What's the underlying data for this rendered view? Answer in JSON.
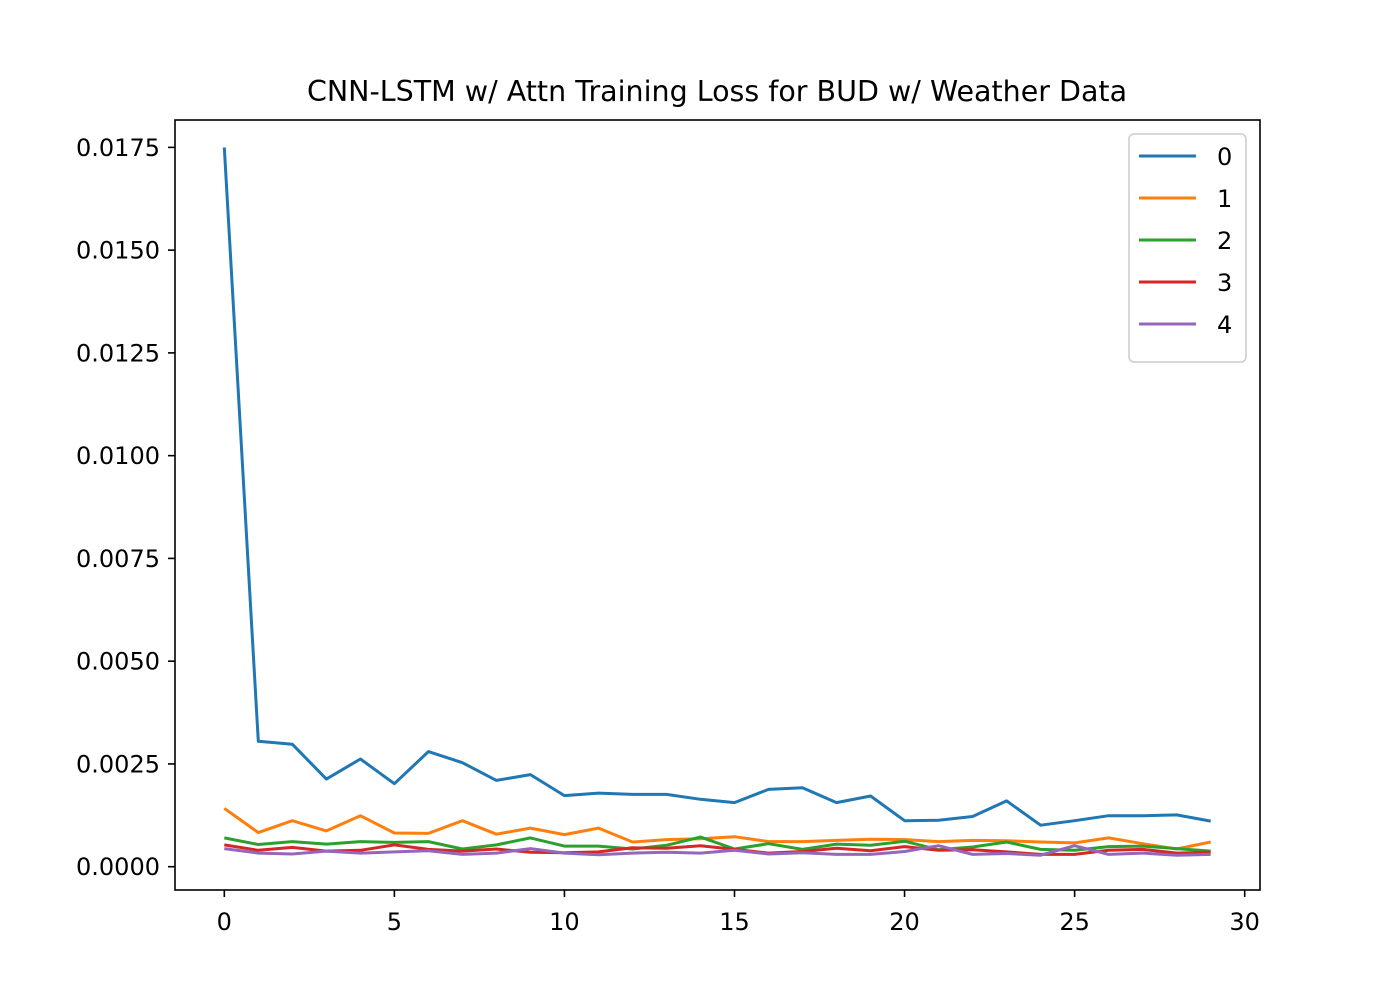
{
  "chart_data": {
    "type": "line",
    "title": "CNN-LSTM w/ Attn Training Loss for BUD w/ Weather Data",
    "xlabel": "",
    "ylabel": "",
    "xlim": [
      -1.45,
      30.45
    ],
    "ylim": [
      -0.000567,
      0.018166
    ],
    "xticks": [
      0,
      5,
      10,
      15,
      20,
      25,
      30
    ],
    "xtick_labels": [
      "0",
      "5",
      "10",
      "15",
      "20",
      "25",
      "30"
    ],
    "yticks": [
      0.0,
      0.0025,
      0.005,
      0.0075,
      0.01,
      0.0125,
      0.015,
      0.0175
    ],
    "ytick_labels": [
      "0.0000",
      "0.0025",
      "0.0050",
      "0.0075",
      "0.0100",
      "0.0125",
      "0.0150",
      "0.0175"
    ],
    "grid": false,
    "legend_position": "top-right",
    "x": [
      0,
      1,
      2,
      3,
      4,
      5,
      6,
      7,
      8,
      9,
      10,
      11,
      12,
      13,
      14,
      15,
      16,
      17,
      18,
      19,
      20,
      21,
      22,
      23,
      24,
      25,
      26,
      27,
      28,
      29
    ],
    "series": [
      {
        "name": "0",
        "color": "#1f77b4",
        "values": [
          0.0175,
          0.00305,
          0.00298,
          0.00213,
          0.00262,
          0.00202,
          0.0028,
          0.00253,
          0.0021,
          0.00224,
          0.00173,
          0.00179,
          0.00176,
          0.00176,
          0.00164,
          0.00156,
          0.00188,
          0.00192,
          0.00156,
          0.00172,
          0.00112,
          0.00113,
          0.00122,
          0.0016,
          0.00101,
          0.00112,
          0.00124,
          0.00124,
          0.00126,
          0.00111
        ]
      },
      {
        "name": "1",
        "color": "#ff7f0e",
        "values": [
          0.00142,
          0.00083,
          0.00112,
          0.00087,
          0.00124,
          0.00082,
          0.00081,
          0.00112,
          0.00079,
          0.00094,
          0.00078,
          0.00094,
          0.0006,
          0.00066,
          0.00068,
          0.00073,
          0.00061,
          0.00061,
          0.00064,
          0.00067,
          0.00066,
          0.00061,
          0.00064,
          0.00063,
          0.0006,
          0.00058,
          0.0007,
          0.00056,
          0.00043,
          0.0006
        ]
      },
      {
        "name": "2",
        "color": "#2ca02c",
        "values": [
          0.0007,
          0.00054,
          0.00061,
          0.00055,
          0.00061,
          0.00059,
          0.00061,
          0.00043,
          0.00053,
          0.0007,
          0.0005,
          0.0005,
          0.00043,
          0.00052,
          0.00072,
          0.00043,
          0.00056,
          0.00042,
          0.00055,
          0.00052,
          0.00062,
          0.00041,
          0.00048,
          0.0006,
          0.00042,
          0.0004,
          0.00049,
          0.0005,
          0.00044,
          0.00038
        ]
      },
      {
        "name": "3",
        "color": "#d62728",
        "values": [
          0.00053,
          0.0004,
          0.00047,
          0.00038,
          0.0004,
          0.00053,
          0.00042,
          0.00038,
          0.00043,
          0.00035,
          0.00034,
          0.00036,
          0.00046,
          0.00045,
          0.00051,
          0.00042,
          0.00033,
          0.00037,
          0.00045,
          0.00039,
          0.00049,
          0.0004,
          0.00041,
          0.00036,
          0.0003,
          0.0003,
          0.0004,
          0.00042,
          0.00033,
          0.00035
        ]
      },
      {
        "name": "4",
        "color": "#9467bd",
        "values": [
          0.00044,
          0.00033,
          0.00031,
          0.00038,
          0.00033,
          0.00036,
          0.00039,
          0.0003,
          0.00033,
          0.00044,
          0.00033,
          0.00029,
          0.00033,
          0.00035,
          0.00033,
          0.0004,
          0.00031,
          0.00034,
          0.0003,
          0.0003,
          0.00037,
          0.00051,
          0.0003,
          0.00032,
          0.00028,
          0.00051,
          0.0003,
          0.00033,
          0.00028,
          0.0003
        ]
      }
    ]
  }
}
